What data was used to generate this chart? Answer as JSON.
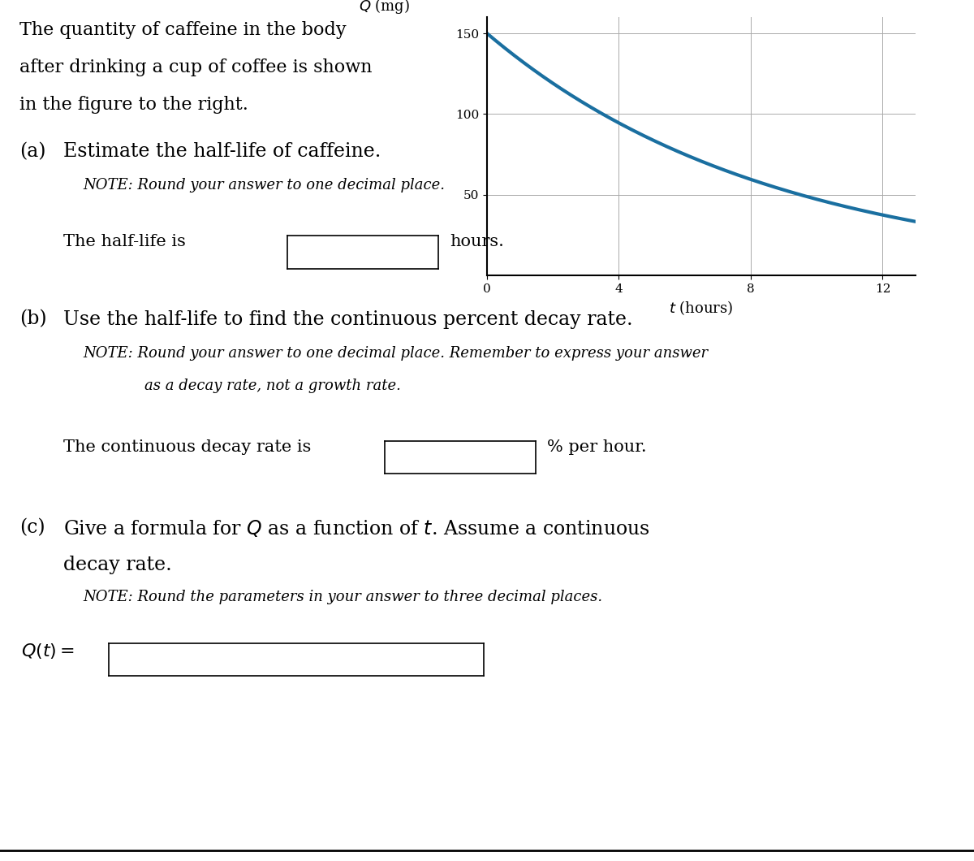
{
  "bg_color": "#ffffff",
  "text_color": "#000000",
  "curve_color": "#1a6fa0",
  "curve_linewidth": 3.0,
  "Q0": 150,
  "decay_rate": 0.1155,
  "t_max": 13,
  "graph_xlim": [
    0,
    13
  ],
  "graph_ylim": [
    0,
    160
  ],
  "graph_xticks": [
    0,
    4,
    8,
    12
  ],
  "graph_yticks": [
    50,
    100,
    150
  ],
  "graph_xlabel": "$t$ (hours)",
  "graph_ylabel": "$Q$ (mg)",
  "serif_font": "DejaVu Serif",
  "main_text_1": "The quantity of caffeine in the body",
  "main_text_2": "after drinking a cup of coffee is shown",
  "main_text_3": "in the figure to the right.",
  "part_a_label": "(a)",
  "part_a_text": "Estimate the half-life of caffeine.",
  "part_a_note": "NOTE: Round your answer to one decimal place.",
  "half_life_text_1": "The half-life is",
  "half_life_text_2": "hours.",
  "part_b_label": "(b)",
  "part_b_text": "Use the half-life to find the continuous percent decay rate.",
  "part_b_note_1": "NOTE: Round your answer to one decimal place. Remember to express your answer",
  "part_b_note_2": "as a decay rate, not a growth rate.",
  "decay_rate_text_1": "The continuous decay rate is",
  "decay_rate_text_2": "% per hour.",
  "part_c_label": "(c)",
  "part_c_text": "Give a formula for $Q$ as a function of $t$. Assume a continuous",
  "part_c_text2": "decay rate.",
  "part_c_note": "NOTE: Round the parameters in your answer to three decimal places.",
  "qt_label": "$Q(t) =$"
}
